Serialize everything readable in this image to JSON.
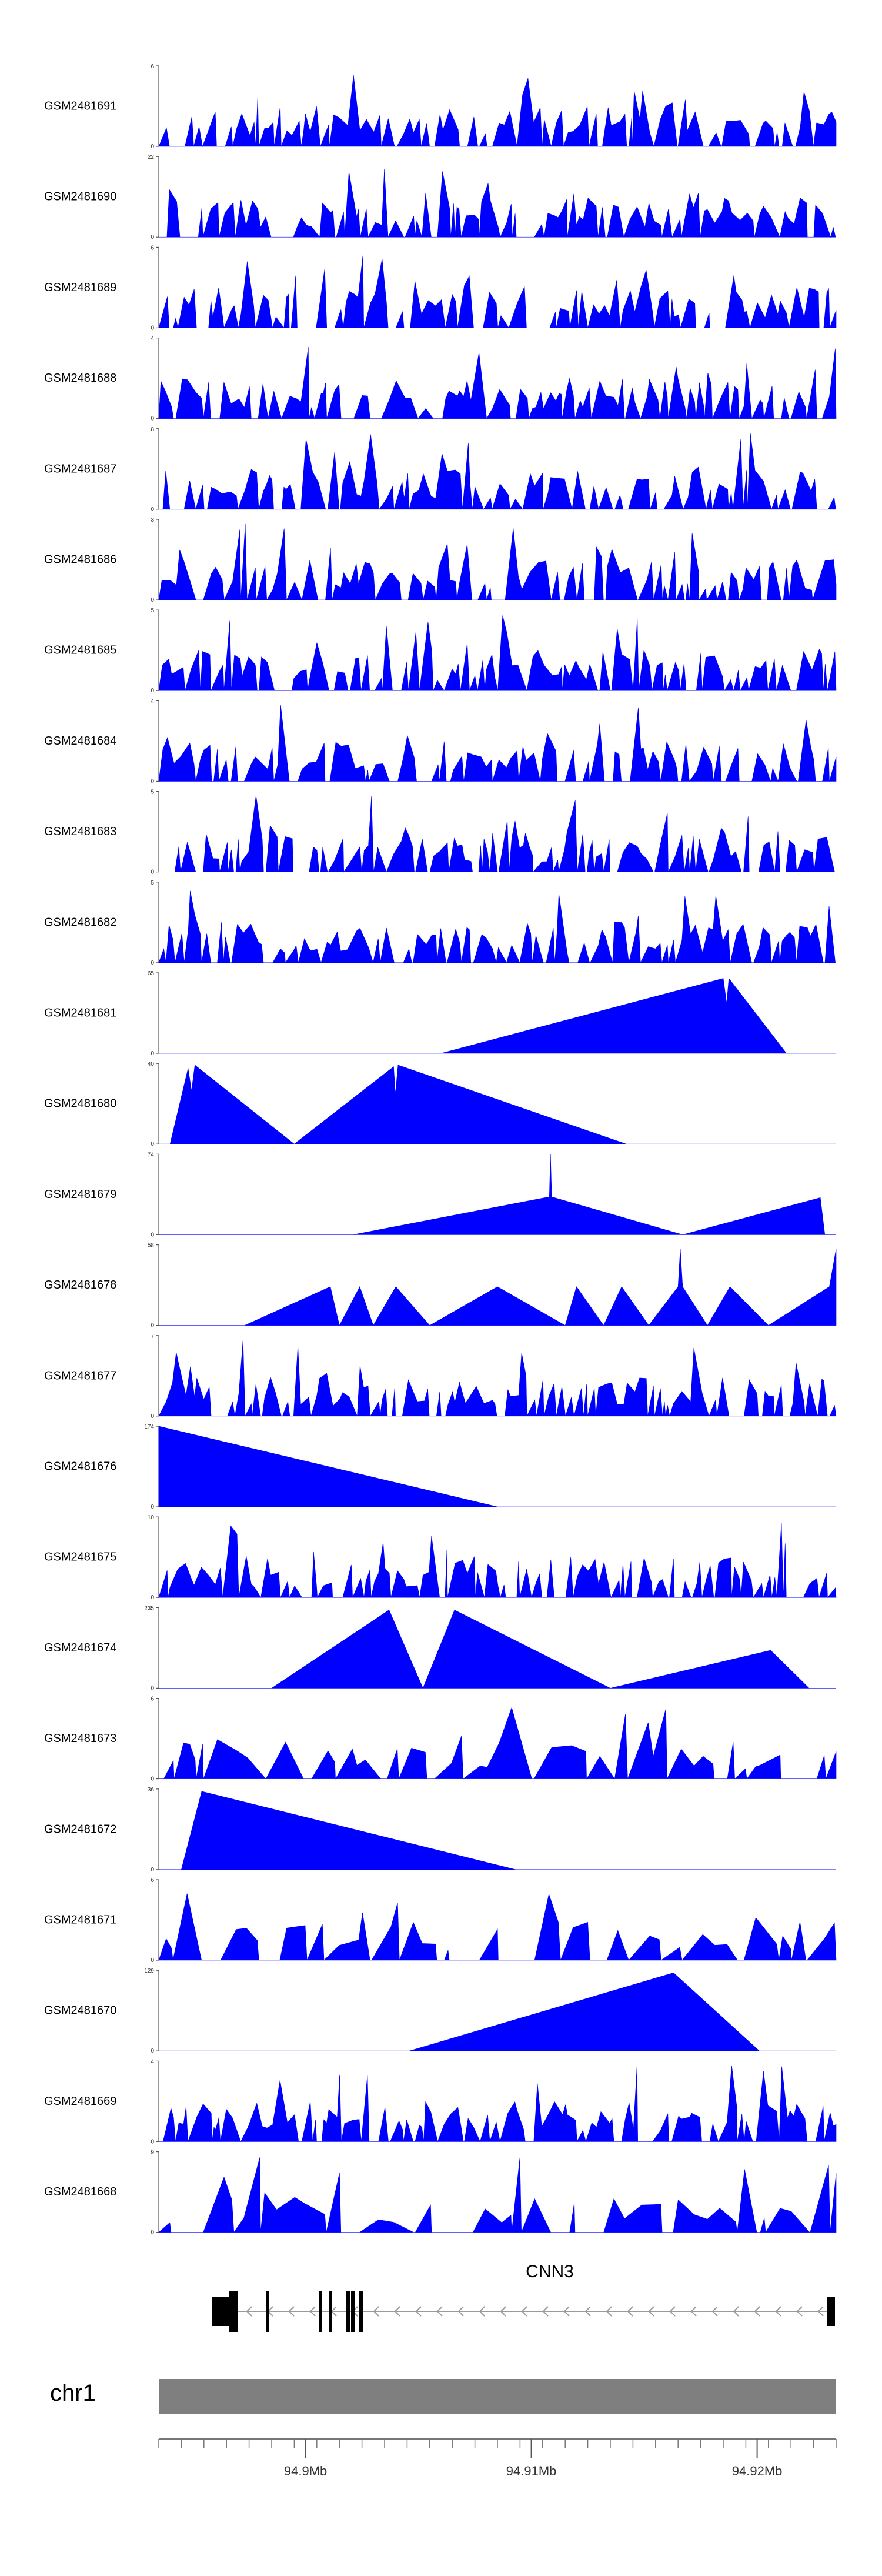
{
  "chart_data": {
    "type": "area",
    "title": "",
    "series_color": "#0000ff",
    "track_items": [
      {
        "name": "GSM2481691",
        "max": "6",
        "min": "0",
        "ymax": 6
      },
      {
        "name": "GSM2481690",
        "max": "22",
        "min": "0",
        "ymax": 22
      },
      {
        "name": "GSM2481689",
        "max": "6",
        "min": "0",
        "ymax": 6
      },
      {
        "name": "GSM2481688",
        "max": "4",
        "min": "0",
        "ymax": 4
      },
      {
        "name": "GSM2481687",
        "max": "8",
        "min": "0",
        "ymax": 8
      },
      {
        "name": "GSM2481686",
        "max": "3",
        "min": "0",
        "ymax": 3
      },
      {
        "name": "GSM2481685",
        "max": "5",
        "min": "0",
        "ymax": 5
      },
      {
        "name": "GSM2481684",
        "max": "4",
        "min": "0",
        "ymax": 4
      },
      {
        "name": "GSM2481683",
        "max": "5",
        "min": "0",
        "ymax": 5
      },
      {
        "name": "GSM2481682",
        "max": "5",
        "min": "0",
        "ymax": 5
      },
      {
        "name": "GSM2481681",
        "max": "65",
        "min": "0",
        "ymax": 65
      },
      {
        "name": "GSM2481680",
        "max": "40",
        "min": "0",
        "ymax": 40
      },
      {
        "name": "GSM2481679",
        "max": "74",
        "min": "0",
        "ymax": 74
      },
      {
        "name": "GSM2481678",
        "max": "58",
        "min": "0",
        "ymax": 58
      },
      {
        "name": "GSM2481677",
        "max": "7",
        "min": "0",
        "ymax": 7
      },
      {
        "name": "GSM2481676",
        "max": "174",
        "min": "0",
        "ymax": 174
      },
      {
        "name": "GSM2481675",
        "max": "10",
        "min": "0",
        "ymax": 10
      },
      {
        "name": "GSM2481674",
        "max": "235",
        "min": "0",
        "ymax": 235
      },
      {
        "name": "GSM2481673",
        "max": "6",
        "min": "0",
        "ymax": 6
      },
      {
        "name": "GSM2481672",
        "max": "36",
        "min": "0",
        "ymax": 36
      },
      {
        "name": "GSM2481671",
        "max": "6",
        "min": "0",
        "ymax": 6
      },
      {
        "name": "GSM2481670",
        "max": "129",
        "min": "0",
        "ymax": 129
      },
      {
        "name": "GSM2481669",
        "max": "4",
        "min": "0",
        "ymax": 4
      },
      {
        "name": "GSM2481668",
        "max": "9",
        "min": "0",
        "ymax": 9
      }
    ],
    "gene": {
      "name": "CNN3",
      "strand": "-",
      "start_mb": 94.8965,
      "end_mb": 94.9245
    },
    "chromosome": "chr1",
    "x_axis": {
      "min_mb": 94.8935,
      "max_mb": 94.9235,
      "ticks": [
        {
          "value": 94.9,
          "label": "94.9Mb"
        },
        {
          "value": 94.91,
          "label": "94.91Mb"
        },
        {
          "value": 94.92,
          "label": "94.92Mb"
        }
      ]
    },
    "broad_series": {
      "GSM2481681": [
        [
          94.8935,
          0
        ],
        [
          94.906,
          0
        ],
        [
          94.9185,
          0.93
        ],
        [
          94.91865,
          0.62
        ],
        [
          94.91875,
          0.93
        ],
        [
          94.9213,
          0
        ]
      ],
      "GSM2481680": [
        [
          94.8935,
          0
        ],
        [
          94.894,
          0
        ],
        [
          94.8948,
          0.94
        ],
        [
          94.89495,
          0.66
        ],
        [
          94.8951,
          0.98
        ],
        [
          94.8995,
          0
        ],
        [
          94.9039,
          0.96
        ],
        [
          94.90398,
          0.62
        ],
        [
          94.9041,
          0.98
        ],
        [
          94.9142,
          0
        ]
      ],
      "GSM2481679": [
        [
          94.8935,
          0
        ],
        [
          94.9021,
          0
        ],
        [
          94.9108,
          0.47
        ],
        [
          94.91085,
          1
        ],
        [
          94.9109,
          0.47
        ],
        [
          94.9167,
          0
        ],
        [
          94.9228,
          0.46
        ],
        [
          94.923,
          0
        ]
      ],
      "GSM2481678": [
        [
          94.8935,
          0
        ],
        [
          94.8973,
          0
        ],
        [
          94.9011,
          0.48
        ],
        [
          94.9015,
          0
        ],
        [
          94.9024,
          0.48
        ],
        [
          94.903,
          0
        ],
        [
          94.904,
          0.48
        ],
        [
          94.9055,
          0
        ],
        [
          94.9085,
          0.48
        ],
        [
          94.9115,
          0
        ],
        [
          94.912,
          0.48
        ],
        [
          94.9132,
          0
        ],
        [
          94.914,
          0.48
        ],
        [
          94.9152,
          0
        ],
        [
          94.9165,
          0.48
        ],
        [
          94.9166,
          0.95
        ],
        [
          94.9167,
          0.48
        ],
        [
          94.9178,
          0
        ],
        [
          94.9188,
          0.48
        ],
        [
          94.9205,
          0
        ],
        [
          94.9232,
          0.48
        ],
        [
          94.9235,
          0.95
        ],
        [
          94.9235,
          0
        ]
      ],
      "GSM2481676": [
        [
          94.8935,
          1
        ],
        [
          94.9085,
          0
        ]
      ],
      "GSM2481674": [
        [
          94.8935,
          0
        ],
        [
          94.8985,
          0
        ],
        [
          94.9037,
          0.97
        ],
        [
          94.9052,
          0
        ],
        [
          94.9066,
          0.97
        ],
        [
          94.9135,
          0
        ],
        [
          94.9206,
          0.47
        ],
        [
          94.9223,
          0
        ]
      ],
      "GSM2481672": [
        [
          94.8935,
          0
        ],
        [
          94.8945,
          0
        ],
        [
          94.8954,
          0.97
        ],
        [
          94.9093,
          0
        ]
      ],
      "GSM2481670": [
        [
          94.8935,
          0
        ],
        [
          94.9046,
          0
        ],
        [
          94.9163,
          0.97
        ],
        [
          94.9201,
          0
        ]
      ]
    }
  }
}
